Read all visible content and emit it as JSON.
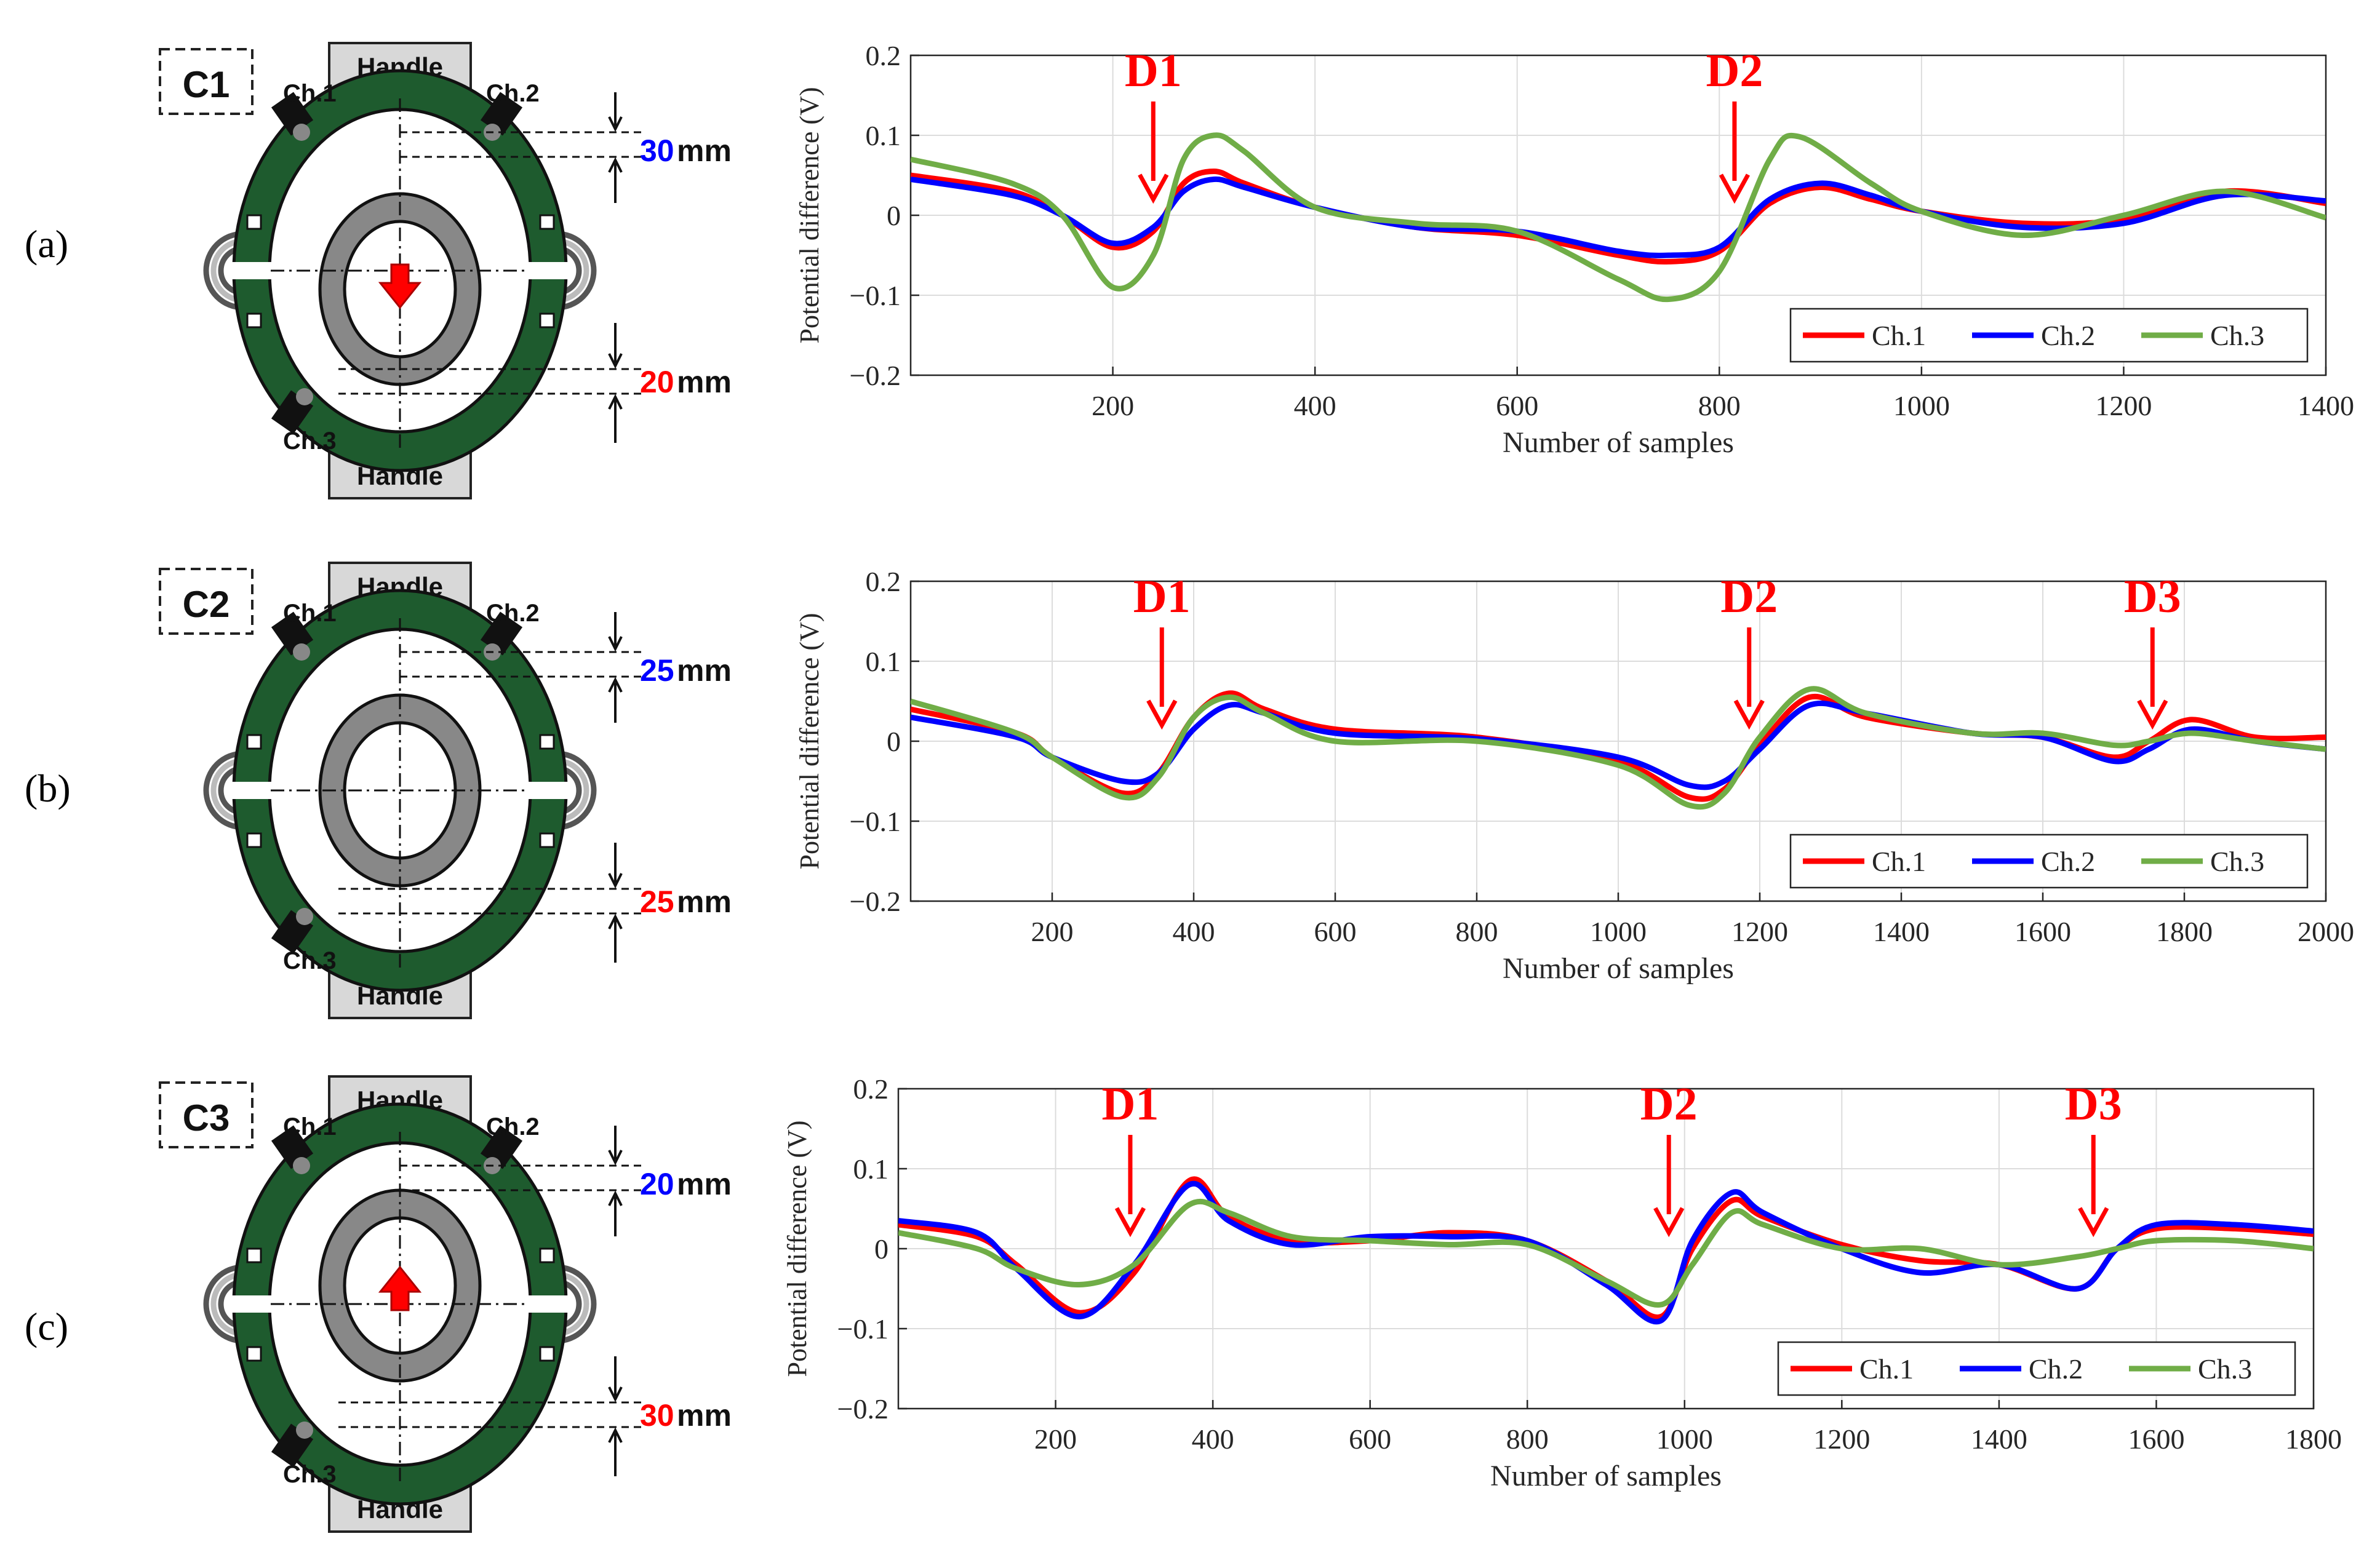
{
  "colors": {
    "ch1": "#ff0000",
    "ch2": "#0000ff",
    "ch3": "#70ad47",
    "green": "#1e5b2e",
    "arrow": "#ff0000",
    "blue_dim": "#0000ff"
  },
  "panels": [
    {
      "label": "(a)",
      "diagram": {
        "case": "C1",
        "top_handle": "Handle",
        "bottom_handle": "Handle",
        "ch1": "Ch.1",
        "ch2": "Ch.2",
        "ch3": "Ch.3",
        "dim_top_value": "30",
        "dim_bottom_value": "20",
        "unit": "mm",
        "arrow": "down"
      }
    },
    {
      "label": "(b)",
      "diagram": {
        "case": "C2",
        "top_handle": "Handle",
        "bottom_handle": "Handle",
        "ch1": "Ch.1",
        "ch2": "Ch.2",
        "ch3": "Ch.3",
        "dim_top_value": "25",
        "dim_bottom_value": "25",
        "unit": "mm",
        "arrow": "none"
      }
    },
    {
      "label": "(c)",
      "diagram": {
        "case": "C3",
        "top_handle": "Handle",
        "bottom_handle": "Handle",
        "ch1": "Ch.1",
        "ch2": "Ch.2",
        "ch3": "Ch.3",
        "dim_top_value": "20",
        "dim_bottom_value": "30",
        "unit": "mm",
        "arrow": "up"
      }
    }
  ],
  "chart_data": [
    {
      "type": "line",
      "xlabel": "Number of samples",
      "ylabel": "Potential difference (V)",
      "xlim": [
        0,
        1400
      ],
      "ylim": [
        -0.2,
        0.2
      ],
      "xticks": [
        200,
        400,
        600,
        800,
        1000,
        1200,
        1400
      ],
      "xtick_labels": [
        "200",
        "400",
        "600",
        "800",
        "1000",
        "1200",
        "1400"
      ],
      "yticks": [
        -0.2,
        -0.1,
        0,
        0.1,
        0.2
      ],
      "ytick_labels": [
        "−0.2",
        "−0.1",
        "0",
        "0.1",
        "0.2"
      ],
      "grid": true,
      "legend_position": "bottom-right",
      "annotations": [
        {
          "text": "D1",
          "x": 240
        },
        {
          "text": "D2",
          "x": 815
        }
      ],
      "series": [
        {
          "name": "Ch.1",
          "x": [
            0,
            100,
            150,
            200,
            240,
            270,
            300,
            330,
            400,
            500,
            600,
            700,
            750,
            800,
            850,
            900,
            950,
            1000,
            1100,
            1200,
            1300,
            1400
          ],
          "y": [
            0.05,
            0.03,
            0.0,
            -0.04,
            -0.02,
            0.04,
            0.055,
            0.04,
            0.01,
            -0.015,
            -0.025,
            -0.05,
            -0.058,
            -0.045,
            0.015,
            0.035,
            0.02,
            0.005,
            -0.01,
            -0.005,
            0.03,
            0.015
          ]
        },
        {
          "name": "Ch.2",
          "x": [
            0,
            100,
            150,
            200,
            240,
            270,
            300,
            330,
            400,
            500,
            600,
            700,
            750,
            800,
            850,
            900,
            950,
            1000,
            1100,
            1200,
            1300,
            1400
          ],
          "y": [
            0.045,
            0.025,
            0.0,
            -0.035,
            -0.015,
            0.03,
            0.045,
            0.035,
            0.01,
            -0.015,
            -0.02,
            -0.045,
            -0.05,
            -0.04,
            0.02,
            0.04,
            0.025,
            0.005,
            -0.015,
            -0.01,
            0.025,
            0.018
          ]
        },
        {
          "name": "Ch.3",
          "x": [
            0,
            100,
            150,
            200,
            240,
            270,
            300,
            330,
            400,
            500,
            600,
            700,
            750,
            800,
            850,
            880,
            950,
            1000,
            1100,
            1200,
            1300,
            1400
          ],
          "y": [
            0.07,
            0.04,
            0.0,
            -0.09,
            -0.05,
            0.07,
            0.1,
            0.08,
            0.01,
            -0.01,
            -0.02,
            -0.08,
            -0.105,
            -0.07,
            0.07,
            0.098,
            0.04,
            0.005,
            -0.025,
            0.0,
            0.03,
            -0.003
          ]
        }
      ]
    },
    {
      "type": "line",
      "xlabel": "Number of samples",
      "ylabel": "Potential difference (V)",
      "xlim": [
        0,
        2000
      ],
      "ylim": [
        -0.2,
        0.2
      ],
      "xticks": [
        200,
        400,
        600,
        800,
        1000,
        1200,
        1400,
        1600,
        1800,
        2000
      ],
      "xtick_labels": [
        "200",
        "400",
        "600",
        "800",
        "1000",
        "1200",
        "1400",
        "1600",
        "1800",
        "2000"
      ],
      "yticks": [
        -0.2,
        -0.1,
        0,
        0.1,
        0.2
      ],
      "ytick_labels": [
        "−0.2",
        "−0.1",
        "0",
        "0.1",
        "0.2"
      ],
      "grid": true,
      "legend_position": "bottom-right",
      "annotations": [
        {
          "text": "D1",
          "x": 355
        },
        {
          "text": "D2",
          "x": 1185
        },
        {
          "text": "D3",
          "x": 1755
        }
      ],
      "series": [
        {
          "name": "Ch.1",
          "x": [
            0,
            150,
            200,
            300,
            350,
            400,
            450,
            500,
            600,
            800,
            1000,
            1100,
            1150,
            1200,
            1270,
            1350,
            1500,
            1600,
            1700,
            1750,
            1810,
            1900,
            2000
          ],
          "y": [
            0.04,
            0.01,
            -0.02,
            -0.065,
            -0.04,
            0.03,
            0.06,
            0.04,
            0.015,
            0.005,
            -0.025,
            -0.07,
            -0.06,
            -0.005,
            0.055,
            0.03,
            0.01,
            0.005,
            -0.02,
            0.0,
            0.027,
            0.005,
            0.005
          ]
        },
        {
          "name": "Ch.2",
          "x": [
            0,
            150,
            200,
            300,
            350,
            400,
            450,
            500,
            600,
            800,
            1000,
            1100,
            1150,
            1200,
            1270,
            1350,
            1500,
            1600,
            1700,
            1750,
            1810,
            1900,
            2000
          ],
          "y": [
            0.03,
            0.005,
            -0.02,
            -0.05,
            -0.04,
            0.015,
            0.045,
            0.035,
            0.01,
            0.003,
            -0.02,
            -0.055,
            -0.05,
            -0.01,
            0.045,
            0.035,
            0.01,
            0.005,
            -0.025,
            -0.01,
            0.015,
            0.0,
            -0.01
          ]
        },
        {
          "name": "Ch.3",
          "x": [
            0,
            150,
            200,
            300,
            350,
            400,
            450,
            500,
            600,
            800,
            1000,
            1100,
            1150,
            1200,
            1270,
            1350,
            1500,
            1600,
            1700,
            1750,
            1810,
            1900,
            2000
          ],
          "y": [
            0.05,
            0.01,
            -0.02,
            -0.07,
            -0.045,
            0.03,
            0.055,
            0.035,
            0.0,
            0.0,
            -0.03,
            -0.08,
            -0.065,
            0.005,
            0.065,
            0.035,
            0.01,
            0.01,
            -0.005,
            0.0,
            0.01,
            0.0,
            -0.01
          ]
        }
      ]
    },
    {
      "type": "line",
      "xlabel": "Number of samples",
      "ylabel": "Potential difference (V)",
      "xlim": [
        0,
        1800
      ],
      "ylim": [
        -0.2,
        0.2
      ],
      "xticks": [
        200,
        400,
        600,
        800,
        1000,
        1200,
        1400,
        1600,
        1800
      ],
      "xtick_labels": [
        "200",
        "400",
        "600",
        "800",
        "1000",
        "1200",
        "1400",
        "1600",
        "1800"
      ],
      "yticks": [
        -0.2,
        -0.1,
        0,
        0.1,
        0.2
      ],
      "ytick_labels": [
        "−0.2",
        "−0.1",
        "0",
        "0.1",
        "0.2"
      ],
      "grid": true,
      "legend_position": "bottom-right",
      "annotations": [
        {
          "text": "D1",
          "x": 295
        },
        {
          "text": "D2",
          "x": 980
        },
        {
          "text": "D3",
          "x": 1520
        }
      ],
      "series": [
        {
          "name": "Ch.1",
          "x": [
            0,
            100,
            150,
            230,
            300,
            370,
            420,
            500,
            600,
            700,
            800,
            900,
            970,
            1010,
            1060,
            1100,
            1200,
            1300,
            1400,
            1500,
            1550,
            1600,
            1700,
            1800
          ],
          "y": [
            0.03,
            0.015,
            -0.02,
            -0.08,
            -0.03,
            0.085,
            0.04,
            0.01,
            0.01,
            0.02,
            0.01,
            -0.04,
            -0.085,
            0.0,
            0.06,
            0.04,
            0.005,
            -0.015,
            -0.02,
            -0.05,
            0.0,
            0.025,
            0.025,
            0.018
          ]
        },
        {
          "name": "Ch.2",
          "x": [
            0,
            100,
            150,
            230,
            300,
            370,
            420,
            500,
            600,
            700,
            800,
            900,
            970,
            1010,
            1060,
            1100,
            1200,
            1300,
            1400,
            1500,
            1550,
            1600,
            1700,
            1800
          ],
          "y": [
            0.035,
            0.02,
            -0.025,
            -0.085,
            -0.02,
            0.08,
            0.035,
            0.005,
            0.015,
            0.015,
            0.01,
            -0.045,
            -0.09,
            0.01,
            0.07,
            0.045,
            0.0,
            -0.03,
            -0.02,
            -0.05,
            0.0,
            0.03,
            0.03,
            0.022
          ]
        },
        {
          "name": "Ch.3",
          "x": [
            0,
            100,
            150,
            230,
            300,
            370,
            420,
            500,
            600,
            700,
            800,
            900,
            970,
            1010,
            1060,
            1100,
            1200,
            1300,
            1400,
            1500,
            1550,
            1600,
            1700,
            1800
          ],
          "y": [
            0.02,
            0.0,
            -0.025,
            -0.045,
            -0.02,
            0.055,
            0.045,
            0.015,
            0.01,
            0.005,
            0.005,
            -0.04,
            -0.07,
            -0.02,
            0.045,
            0.03,
            0.0,
            0.0,
            -0.02,
            -0.01,
            0.0,
            0.01,
            0.01,
            0.0
          ]
        }
      ]
    }
  ]
}
